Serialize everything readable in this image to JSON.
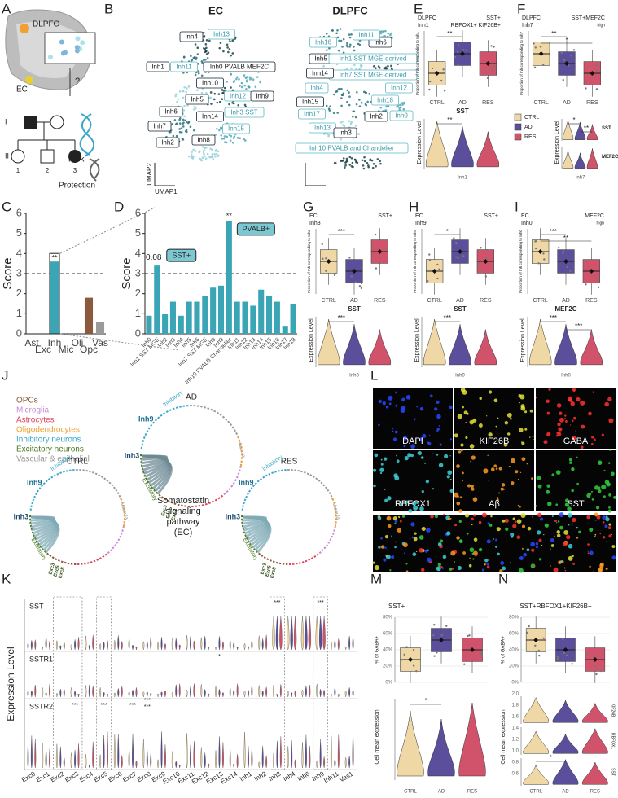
{
  "panel_labels": {
    "a": "A",
    "b": "B",
    "c": "C",
    "d": "D",
    "e": "E",
    "f": "F",
    "g": "G",
    "h": "H",
    "i": "I",
    "j": "J",
    "k": "K",
    "l": "L",
    "m": "M",
    "n": "N"
  },
  "panel_a": {
    "regions": [
      "DLPFC",
      "EC"
    ],
    "question": "?",
    "generations": [
      "I",
      "II"
    ],
    "individuals": [
      "1",
      "2",
      "3"
    ],
    "dna_labels": [
      "Risk",
      "Protection"
    ]
  },
  "panel_b": {
    "umaps": [
      {
        "title": "EC",
        "clusters": [
          "Inh4",
          "Inh13",
          "Inh0 PVALB MEF2C",
          "Inh1",
          "Inh11",
          "Inh10",
          "Inh5",
          "Inh12",
          "Inh9",
          "Inh6",
          "Inh3 SST",
          "Inh14",
          "Inh7",
          "Inh15",
          "Inh2",
          "Inh8"
        ]
      },
      {
        "title": "DLPFC",
        "clusters": [
          "Inh6",
          "Inh16",
          "Inh11",
          "Inh5",
          "Inh1 SST MGE-derived",
          "Inh7 SST MGE-derived",
          "Inh14",
          "Inh4",
          "Inh12",
          "Inh15",
          "Inh18",
          "Inh17",
          "Inh2",
          "Inh0",
          "Inh13",
          "Inh3",
          "Inh10 PVALB and Chandelier"
        ]
      }
    ],
    "x_label": "UMAP1",
    "y_label": "UMAP2"
  },
  "chart_data": [
    {
      "type": "bar",
      "y_label": "Score",
      "categories": [
        "Ast",
        "Exc",
        "Inh",
        "Mic",
        "Oli",
        "Opc",
        "Vas"
      ],
      "values": [
        0,
        0,
        3.6,
        0,
        0,
        1.8,
        0.6
      ],
      "colors": [
        "#3aa6b5",
        "#3aa6b5",
        "#3aa6b5",
        "#3aa6b5",
        "#3aa6b5",
        "#8b5a3c",
        "#9a9a9a"
      ],
      "ylim": [
        0,
        6
      ],
      "yticks": [
        0,
        1,
        2,
        3,
        4,
        5,
        6
      ],
      "threshold": 3,
      "annotations": [
        "**"
      ]
    },
    {
      "type": "bar",
      "y_label": "Score",
      "categories": [
        "Inh0",
        "Inh1 SST MGE",
        "Inh2",
        "Inh3",
        "Inh4",
        "Inh5",
        "Inh6",
        "Inh7 SST MGE",
        "Inh8",
        "Inh9",
        "Inh10 PVALB Chandelier",
        "Inh11",
        "Inh12",
        "Inh13",
        "Inh14",
        "Inh15",
        "Inh16",
        "Inh17",
        "Inh18"
      ],
      "values": [
        0.9,
        3.4,
        1.0,
        1.6,
        0.9,
        1.6,
        1.6,
        1.9,
        2.3,
        2.4,
        5.6,
        1.6,
        1.6,
        1.4,
        2.2,
        1.9,
        1.6,
        0.4,
        1.5
      ],
      "color": "#3aa6b5",
      "ylim": [
        0,
        6
      ],
      "yticks": [
        0,
        1,
        2,
        3,
        4,
        5,
        6
      ],
      "threshold": 3,
      "annotations": [
        "0.08",
        "SST+",
        "**",
        "PVALB+"
      ]
    }
  ],
  "panel_e": {
    "region": "DLPFC",
    "cluster": "Inh1",
    "markers": [
      "SST+",
      "RBFOX1+ KIF26B+"
    ],
    "y_label": "Proportion of Inh corresponding to Inh1",
    "groups": [
      "CTRL",
      "AD",
      "RES"
    ],
    "box_sig": [
      "**"
    ],
    "genes": [
      "SST"
    ],
    "violin_y_label": "Expression Level",
    "violin_x": "Inh1",
    "violin_sig": [
      "**"
    ]
  },
  "panel_f": {
    "region": "DLPFC",
    "cluster": "Inh7",
    "markers": [
      "SST+MEF2C",
      "high"
    ],
    "y_label": "Proportion of Inh corresponding to Inh7",
    "groups": [
      "CTRL",
      "AD",
      "RES"
    ],
    "box_sig": [
      "**",
      "*"
    ],
    "genes": [
      "SST",
      "MEF2C"
    ],
    "violin_y_label": "Expression Level",
    "violin_x": "Inh7",
    "violin_sig": [
      "*",
      "**"
    ]
  },
  "panel_g": {
    "region": "EC",
    "cluster": "Inh3",
    "markers": [
      "SST+"
    ],
    "y_label": "Proportion of Inh corresponding to Inh3",
    "groups": [
      "CTRL",
      "AD",
      "RES"
    ],
    "box_sig": [
      "***"
    ],
    "genes": [
      "SST"
    ],
    "violin_y_label": "Expression Level",
    "violin_x": "Inh3",
    "violin_sig": [
      "***"
    ]
  },
  "panel_h": {
    "region": "EC",
    "cluster": "Inh9",
    "markers": [
      "SST+"
    ],
    "y_label": "Proportion of Inh corresponding to Inh9",
    "groups": [
      "CTRL",
      "AD",
      "RES"
    ],
    "box_sig": [
      "*"
    ],
    "genes": [
      "SST"
    ],
    "violin_y_label": "Expression Level",
    "violin_x": "Inh9",
    "violin_sig": [
      "***"
    ]
  },
  "panel_i": {
    "region": "EC",
    "cluster": "Inh0",
    "markers": [
      "MEF2C",
      "high"
    ],
    "y_label": "Proportion of Inh corresponding to Inh0",
    "groups": [
      "CTRL",
      "AD",
      "RES"
    ],
    "box_sig": [
      "***",
      "**"
    ],
    "genes": [
      "MEF2C"
    ],
    "violin_y_label": "Expression Level",
    "violin_x": "Inh0",
    "violin_sig": [
      "***",
      "***"
    ]
  },
  "condition_legend": [
    {
      "name": "CTRL",
      "color": "#efd7a6"
    },
    {
      "name": "AD",
      "color": "#5b4f9c"
    },
    {
      "name": "RES",
      "color": "#d1536b"
    }
  ],
  "panel_j": {
    "cell_types": [
      {
        "name": "OPCs",
        "color": "#8b5a3c"
      },
      {
        "name": "Microglia",
        "color": "#c98ad6"
      },
      {
        "name": "Astrocytes",
        "color": "#e0455a"
      },
      {
        "name": "Oligodendrocytes",
        "color": "#f0a030"
      },
      {
        "name": "Inhibitory neurons",
        "color": "#3aa6c9"
      },
      {
        "name": "Excitatory neurons",
        "color": "#4a7a1e"
      },
      {
        "name": "Vascular & epithelial",
        "color": "#9a9a9a"
      }
    ],
    "conditions": [
      "AD",
      "CTRL",
      "RES"
    ],
    "sender_labels": [
      "Inh9",
      "Inh3"
    ],
    "sector_labels": [
      "Inhibitory",
      "Excitatory",
      "Vascular"
    ],
    "receivers": [
      "Exc3",
      "Exc5",
      "Exc8"
    ],
    "center": [
      "Somatostatin",
      "signaling",
      "pathway",
      "(EC)"
    ]
  },
  "panel_k": {
    "y_label": "Expression Level",
    "genes": [
      "SST",
      "SSTR1",
      "SSTR2"
    ],
    "clusters": [
      "Exc0",
      "Exc1",
      "Exc2",
      "Exc3",
      "Exc4",
      "Exc5",
      "Exc6",
      "Exc7",
      "Exc8",
      "Exc9",
      "Exc10",
      "Exc11",
      "Exc12",
      "Exc13",
      "Exc14",
      "Inh1",
      "Inh2",
      "Inh3",
      "Inh4",
      "Inh6",
      "Inh9",
      "Inh11",
      "Vas1"
    ],
    "sig": [
      "***",
      "***",
      "*",
      "***",
      "***",
      "***",
      "***",
      "***"
    ]
  },
  "panel_l": {
    "channels": [
      "DAPI",
      "KIF26B",
      "GABA",
      "RBFOX1",
      "Aβ",
      "SST"
    ]
  },
  "panel_m": {
    "title": "SST+",
    "y_label": "% of GABA+",
    "yticks": [
      "80%",
      "60%",
      "40%",
      "20%",
      "0%"
    ],
    "lower_y_label": "Cell mean expression",
    "groups": [
      "CTRL",
      "AD",
      "RES"
    ],
    "sig": [
      "*"
    ]
  },
  "panel_n": {
    "title": "SST+RBFOX1+KIF26B+",
    "y_label": "% of GABA+",
    "yticks": [
      "80%",
      "60%",
      "40%",
      "20%",
      "0%"
    ],
    "lower_y_label": "Cell mean expression",
    "lower_yticks": [
      "2.0",
      "1.8",
      "1.6",
      "1.4",
      "1.2",
      "1.0",
      "0.8",
      "0.6"
    ],
    "genes": [
      "KIF26B",
      "RBFOX1",
      "SST"
    ],
    "groups": [
      "CTRL",
      "AD",
      "RES"
    ],
    "sig": [
      "*"
    ]
  }
}
